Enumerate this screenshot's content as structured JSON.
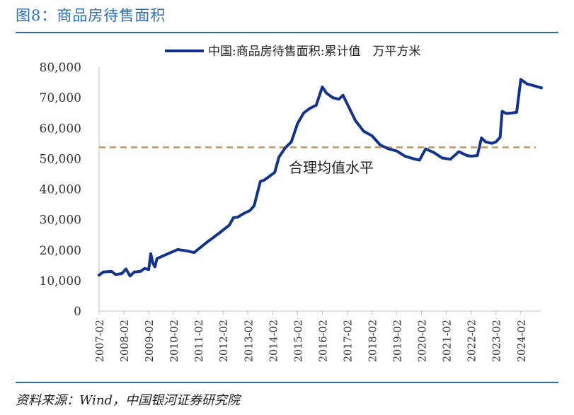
{
  "figure": {
    "title": "图8：商品房待售面积",
    "source": "资料来源：Wind，中国银河证券研究院"
  },
  "chart_data": {
    "type": "line",
    "legend": {
      "position": "top",
      "entries": [
        "中国:商品房待售面积:累计值　万平方米"
      ]
    },
    "ylim": [
      0,
      80000
    ],
    "yticks": [
      0,
      10000,
      20000,
      30000,
      40000,
      50000,
      60000,
      70000,
      80000
    ],
    "ytick_labels": [
      "0",
      "10,000",
      "20,000",
      "30,000",
      "40,000",
      "50,000",
      "60,000",
      "70,000",
      "80,000"
    ],
    "xlim": [
      "2007-02",
      "2024-12"
    ],
    "xtick_labels": [
      "2007-02",
      "2008-02",
      "2009-02",
      "2010-02",
      "2011-02",
      "2012-02",
      "2013-02",
      "2014-02",
      "2015-02",
      "2016-02",
      "2017-02",
      "2018-02",
      "2019-02",
      "2020-02",
      "2021-02",
      "2022-02",
      "2023-02",
      "2024-02"
    ],
    "grid": false,
    "line_color": "#14348a",
    "reference_line": {
      "value": 53700,
      "label": "合理均值水平",
      "color": "#c8955a",
      "style": "dashed"
    },
    "series": [
      {
        "name": "中国:商品房待售面积:累计值　万平方米",
        "points": [
          [
            "2007-02",
            11800
          ],
          [
            "2007-04",
            12800
          ],
          [
            "2007-08",
            13000
          ],
          [
            "2007-10",
            12000
          ],
          [
            "2008-01",
            12300
          ],
          [
            "2008-03",
            13800
          ],
          [
            "2008-05",
            11500
          ],
          [
            "2008-07",
            12800
          ],
          [
            "2008-10",
            13000
          ],
          [
            "2008-12",
            14000
          ],
          [
            "2009-02",
            13600
          ],
          [
            "2009-03",
            18800
          ],
          [
            "2009-04",
            15800
          ],
          [
            "2009-05",
            14500
          ],
          [
            "2009-06",
            17200
          ],
          [
            "2009-08",
            17800
          ],
          [
            "2009-12",
            19000
          ],
          [
            "2010-04",
            20200
          ],
          [
            "2010-08",
            19800
          ],
          [
            "2010-12",
            19200
          ],
          [
            "2011-06",
            22500
          ],
          [
            "2011-12",
            25500
          ],
          [
            "2012-05",
            28200
          ],
          [
            "2012-07",
            30600
          ],
          [
            "2012-09",
            30800
          ],
          [
            "2012-12",
            32000
          ],
          [
            "2013-03",
            33000
          ],
          [
            "2013-05",
            34500
          ],
          [
            "2013-08",
            42500
          ],
          [
            "2013-10",
            43000
          ],
          [
            "2013-12",
            44000
          ],
          [
            "2014-03",
            45500
          ],
          [
            "2014-05",
            50500
          ],
          [
            "2014-08",
            53500
          ],
          [
            "2014-11",
            55500
          ],
          [
            "2015-02",
            61500
          ],
          [
            "2015-05",
            65000
          ],
          [
            "2015-08",
            66500
          ],
          [
            "2015-11",
            67500
          ],
          [
            "2016-02",
            73500
          ],
          [
            "2016-04",
            71500
          ],
          [
            "2016-07",
            70000
          ],
          [
            "2016-10",
            69500
          ],
          [
            "2016-12",
            70800
          ],
          [
            "2017-02",
            68000
          ],
          [
            "2017-06",
            62500
          ],
          [
            "2017-10",
            59000
          ],
          [
            "2018-02",
            57500
          ],
          [
            "2018-06",
            54500
          ],
          [
            "2018-10",
            53200
          ],
          [
            "2019-02",
            52500
          ],
          [
            "2019-06",
            50800
          ],
          [
            "2019-10",
            50000
          ],
          [
            "2020-01",
            49500
          ],
          [
            "2020-04",
            53200
          ],
          [
            "2020-08",
            52000
          ],
          [
            "2020-12",
            50200
          ],
          [
            "2021-04",
            49800
          ],
          [
            "2021-08",
            52300
          ],
          [
            "2021-12",
            51000
          ],
          [
            "2022-02",
            50800
          ],
          [
            "2022-05",
            51000
          ],
          [
            "2022-07",
            56800
          ],
          [
            "2022-09",
            55500
          ],
          [
            "2022-12",
            55000
          ],
          [
            "2023-02",
            55500
          ],
          [
            "2023-04",
            57000
          ],
          [
            "2023-05",
            65500
          ],
          [
            "2023-07",
            64800
          ],
          [
            "2023-10",
            65000
          ],
          [
            "2023-12",
            65200
          ],
          [
            "2024-02",
            76000
          ],
          [
            "2024-05",
            74500
          ],
          [
            "2024-08",
            74000
          ],
          [
            "2024-12",
            73200
          ]
        ]
      }
    ]
  }
}
